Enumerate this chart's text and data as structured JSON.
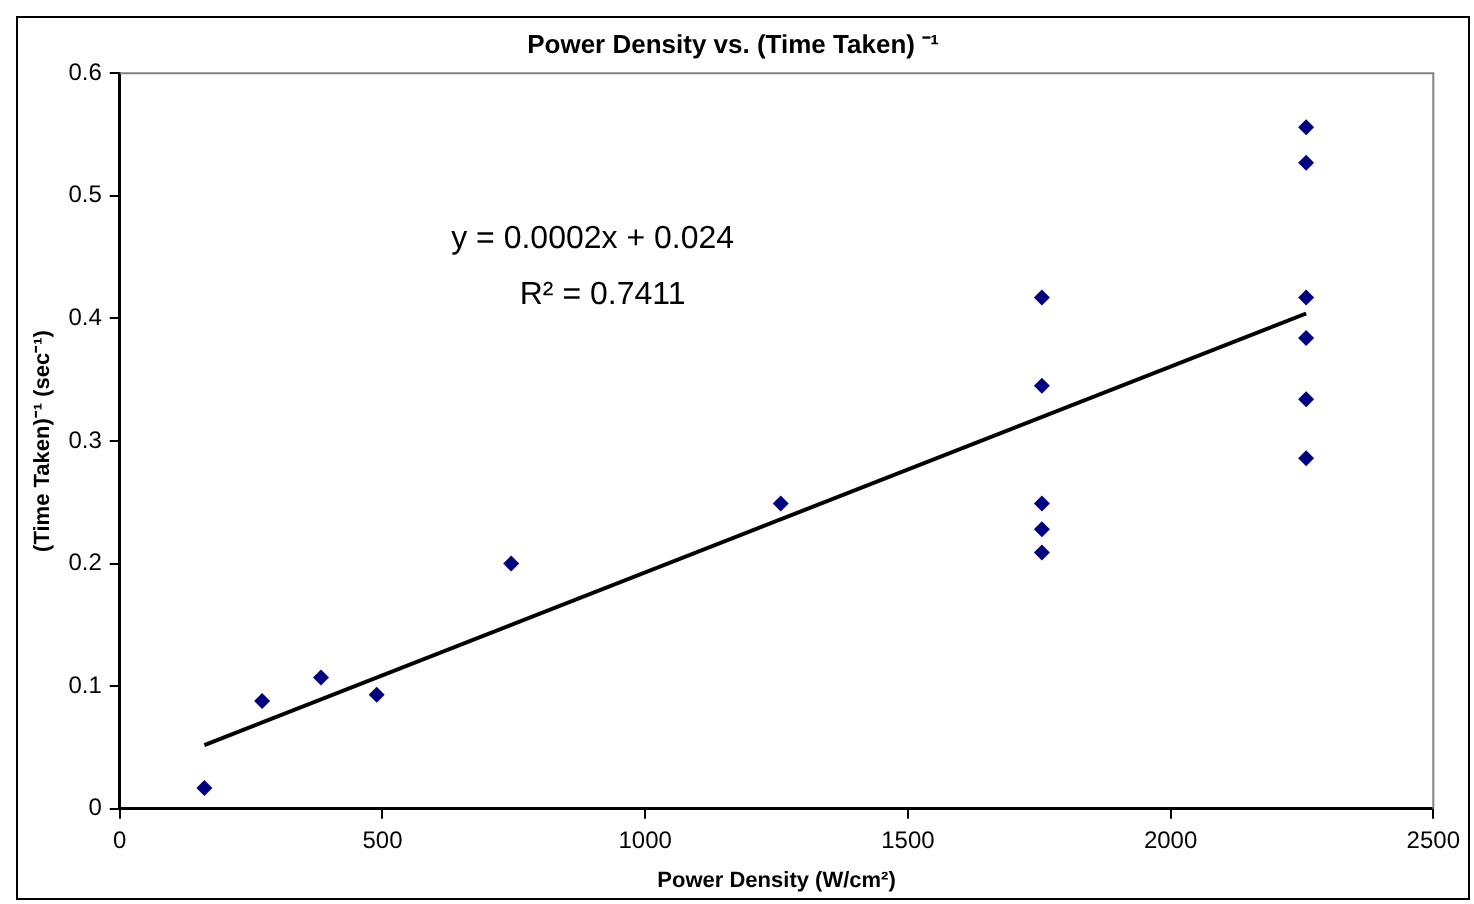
{
  "chart_data": {
    "type": "scatter",
    "title": "Power Density vs. (Time Taken) ⁻¹",
    "xlabel": "Power Density (W/cm²)",
    "ylabel": "(Time Taken)⁻¹ (sec⁻¹)",
    "annotations": [
      "y = 0.0002x + 0.024",
      "R² = 0.7411"
    ],
    "xlim": [
      0,
      2500
    ],
    "xticks": [
      0,
      500,
      1000,
      1500,
      2000,
      2500
    ],
    "ylim": [
      0,
      0.6
    ],
    "yticks": [
      0,
      0.1,
      0.2,
      0.3,
      0.4,
      0.5,
      0.6
    ],
    "grid": false,
    "legend": false,
    "marker": "diamond",
    "series": [
      {
        "color": "#000080",
        "x": [
          161,
          271,
          383,
          489,
          745,
          1258,
          1755,
          1755,
          1755,
          1755,
          1755,
          2258,
          2258,
          2258,
          2258,
          2258,
          2258
        ],
        "values": [
          0.017,
          0.088,
          0.107,
          0.093,
          0.2,
          0.249,
          0.417,
          0.345,
          0.249,
          0.228,
          0.209,
          0.556,
          0.527,
          0.417,
          0.384,
          0.334,
          0.286
        ]
      },
      {
        "type": "line",
        "color": "#000000",
        "marker": "none",
        "line_style": "solid",
        "x": [
          161,
          2258
        ],
        "values": [
          0.052,
          0.404
        ]
      }
    ]
  }
}
